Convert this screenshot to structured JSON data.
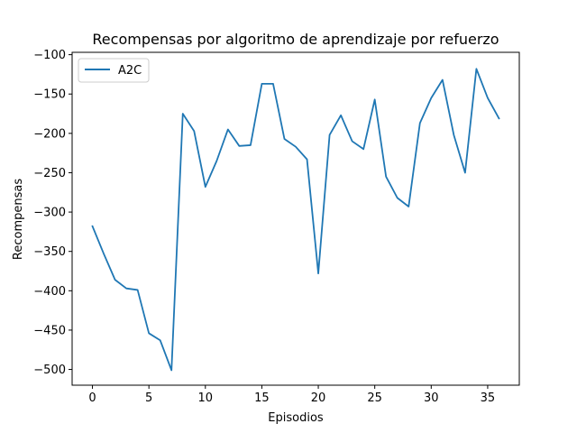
{
  "chart_data": {
    "type": "line",
    "title": "Recompensas por algoritmo de aprendizaje por refuerzo",
    "xlabel": "Episodios",
    "ylabel": "Recompensas",
    "xlim": [
      -1.8,
      37.8
    ],
    "ylim": [
      -520,
      -97
    ],
    "xticks": [
      0,
      5,
      10,
      15,
      20,
      25,
      30,
      35
    ],
    "yticks": [
      -100,
      -150,
      -200,
      -250,
      -300,
      -350,
      -400,
      -450,
      -500
    ],
    "grid": false,
    "legend_position": "top-left",
    "series": [
      {
        "name": "A2C",
        "color": "#1f77b4",
        "x": [
          0,
          1,
          2,
          3,
          4,
          5,
          6,
          7,
          8,
          9,
          10,
          11,
          12,
          13,
          14,
          15,
          16,
          17,
          18,
          19,
          20,
          21,
          22,
          23,
          24,
          25,
          26,
          27,
          28,
          29,
          30,
          31,
          32,
          33,
          34,
          35,
          36
        ],
        "values": [
          -318,
          -353,
          -386,
          -397,
          -399,
          -454,
          -463,
          -501,
          -175,
          -197,
          -268,
          -235,
          -195,
          -216,
          -215,
          -137,
          -137,
          -207,
          -217,
          -233,
          -378,
          -202,
          -177,
          -210,
          -220,
          -157,
          -255,
          -282,
          -293,
          -187,
          -155,
          -132,
          -202,
          -250,
          -118,
          -155,
          -181
        ]
      }
    ]
  }
}
